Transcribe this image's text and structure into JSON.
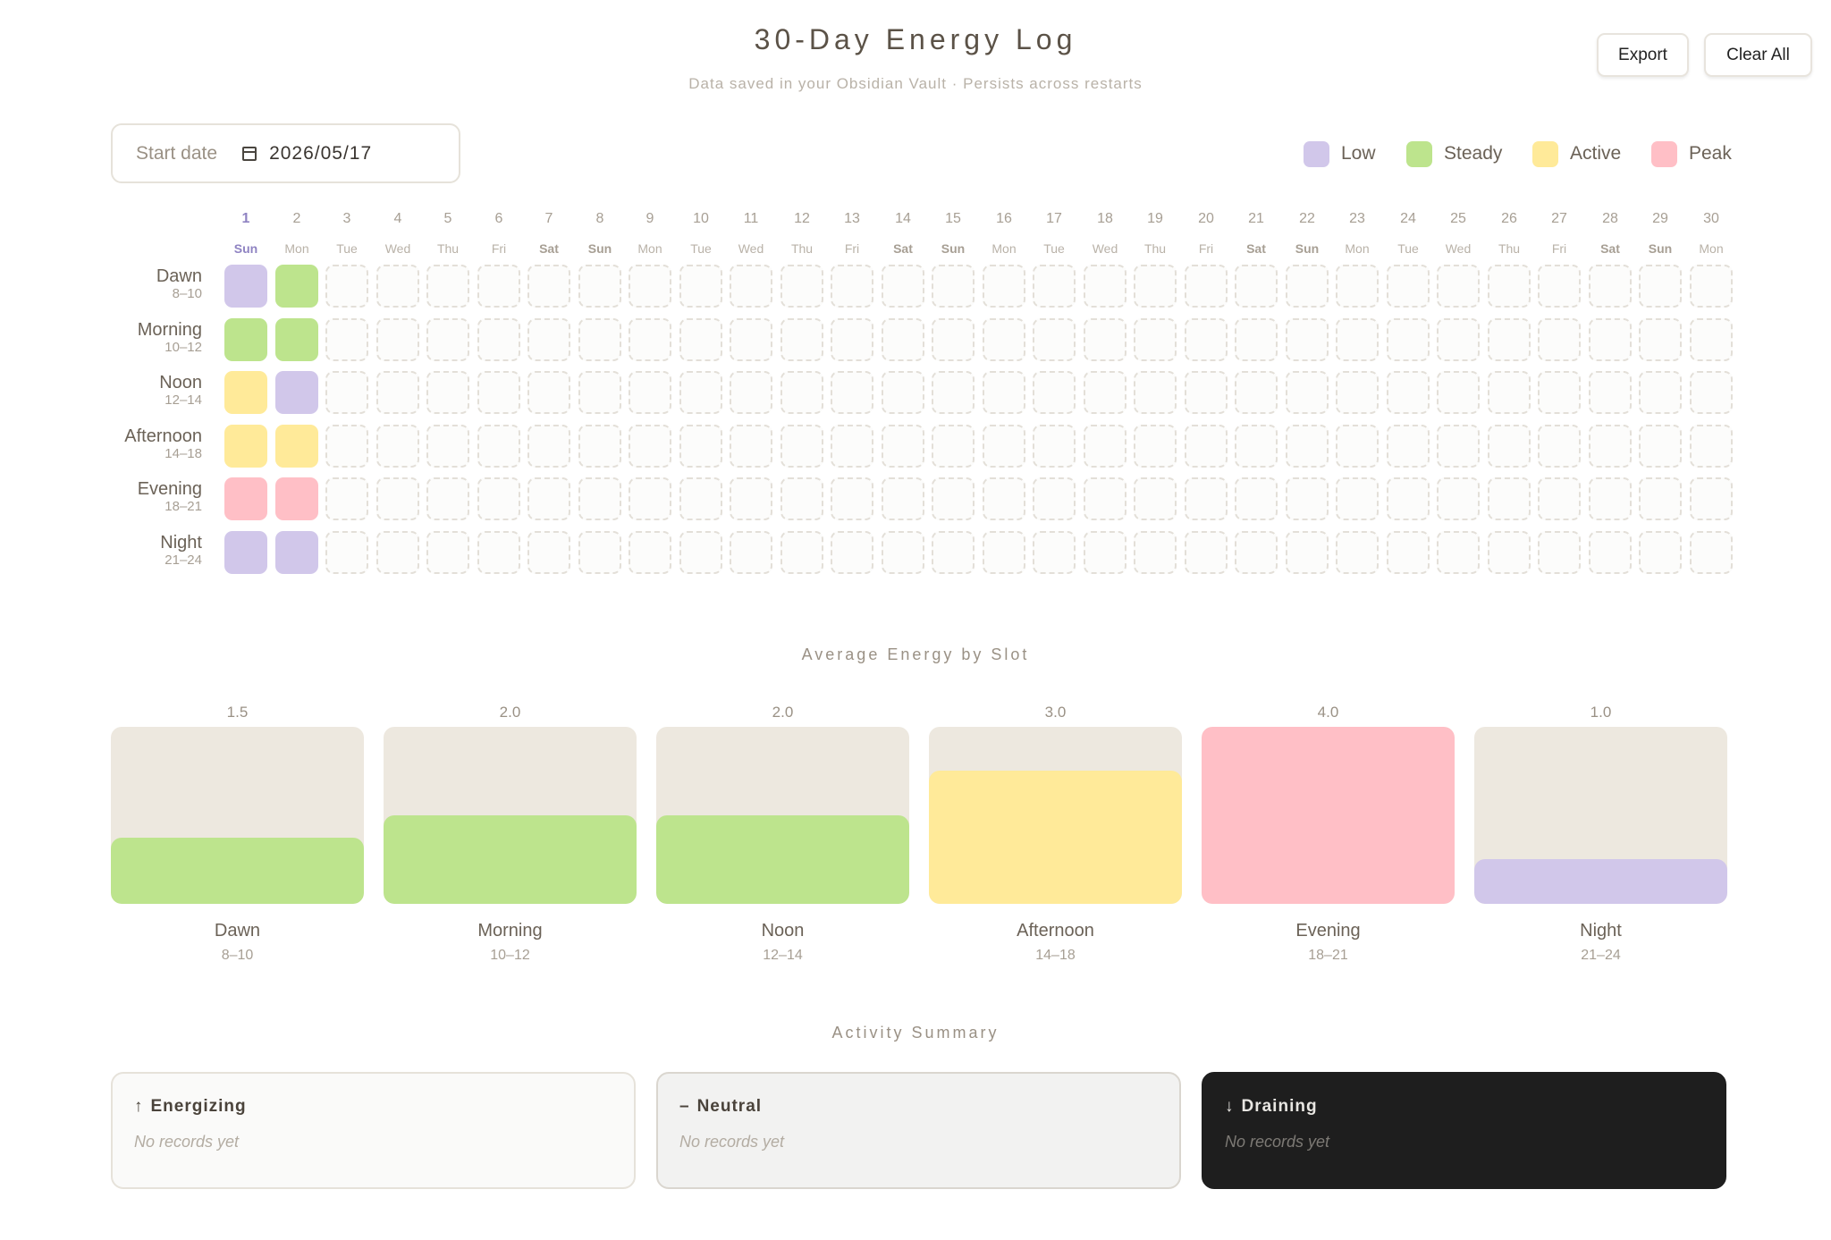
{
  "header": {
    "title": "30-Day Energy Log",
    "subtitle": "Data saved in your Obsidian Vault · Persists across restarts",
    "export_label": "Export",
    "clear_label": "Clear All"
  },
  "start_date": {
    "label": "Start date",
    "value": "2026/05/17",
    "icon": "calendar-icon"
  },
  "legend": [
    {
      "label": "Low",
      "color": "#d1c7ea"
    },
    {
      "label": "Steady",
      "color": "#bde48d"
    },
    {
      "label": "Active",
      "color": "#ffea99"
    },
    {
      "label": "Peak",
      "color": "#ffbfc6"
    }
  ],
  "days": [
    {
      "num": "1",
      "wd": "Sun"
    },
    {
      "num": "2",
      "wd": "Mon"
    },
    {
      "num": "3",
      "wd": "Tue"
    },
    {
      "num": "4",
      "wd": "Wed"
    },
    {
      "num": "5",
      "wd": "Thu"
    },
    {
      "num": "6",
      "wd": "Fri"
    },
    {
      "num": "7",
      "wd": "Sat"
    },
    {
      "num": "8",
      "wd": "Sun"
    },
    {
      "num": "9",
      "wd": "Mon"
    },
    {
      "num": "10",
      "wd": "Tue"
    },
    {
      "num": "11",
      "wd": "Wed"
    },
    {
      "num": "12",
      "wd": "Thu"
    },
    {
      "num": "13",
      "wd": "Fri"
    },
    {
      "num": "14",
      "wd": "Sat"
    },
    {
      "num": "15",
      "wd": "Sun"
    },
    {
      "num": "16",
      "wd": "Mon"
    },
    {
      "num": "17",
      "wd": "Tue"
    },
    {
      "num": "18",
      "wd": "Wed"
    },
    {
      "num": "19",
      "wd": "Thu"
    },
    {
      "num": "20",
      "wd": "Fri"
    },
    {
      "num": "21",
      "wd": "Sat"
    },
    {
      "num": "22",
      "wd": "Sun"
    },
    {
      "num": "23",
      "wd": "Mon"
    },
    {
      "num": "24",
      "wd": "Tue"
    },
    {
      "num": "25",
      "wd": "Wed"
    },
    {
      "num": "26",
      "wd": "Thu"
    },
    {
      "num": "27",
      "wd": "Fri"
    },
    {
      "num": "28",
      "wd": "Sat"
    },
    {
      "num": "29",
      "wd": "Sun"
    },
    {
      "num": "30",
      "wd": "Mon"
    }
  ],
  "slots": [
    {
      "name": "Dawn",
      "hours": "8–10",
      "entries": [
        "Low",
        "Steady"
      ]
    },
    {
      "name": "Morning",
      "hours": "10–12",
      "entries": [
        "Steady",
        "Steady"
      ]
    },
    {
      "name": "Noon",
      "hours": "12–14",
      "entries": [
        "Active",
        "Low"
      ]
    },
    {
      "name": "Afternoon",
      "hours": "14–18",
      "entries": [
        "Active",
        "Active"
      ]
    },
    {
      "name": "Evening",
      "hours": "18–21",
      "entries": [
        "Peak",
        "Peak"
      ]
    },
    {
      "name": "Night",
      "hours": "21–24",
      "entries": [
        "Low",
        "Low"
      ]
    }
  ],
  "averages": {
    "title": "Average Energy by Slot",
    "max": 4,
    "items": [
      {
        "name": "Dawn",
        "hours": "8–10",
        "value": 1.5,
        "label": "1.5",
        "level": "Steady"
      },
      {
        "name": "Morning",
        "hours": "10–12",
        "value": 2.0,
        "label": "2.0",
        "level": "Steady"
      },
      {
        "name": "Noon",
        "hours": "12–14",
        "value": 2.0,
        "label": "2.0",
        "level": "Steady"
      },
      {
        "name": "Afternoon",
        "hours": "14–18",
        "value": 3.0,
        "label": "3.0",
        "level": "Active"
      },
      {
        "name": "Evening",
        "hours": "18–21",
        "value": 4.0,
        "label": "4.0",
        "level": "Peak"
      },
      {
        "name": "Night",
        "hours": "21–24",
        "value": 1.0,
        "label": "1.0",
        "level": "Low"
      }
    ]
  },
  "summary": {
    "title": "Activity Summary",
    "cards": [
      {
        "icon": "↑",
        "icon_name": "arrow-up-icon",
        "title": "Energizing",
        "empty": "No records yet"
      },
      {
        "icon": "–",
        "icon_name": "dash-icon",
        "title": "Neutral",
        "empty": "No records yet"
      },
      {
        "icon": "↓",
        "icon_name": "arrow-down-icon",
        "title": "Draining",
        "empty": "No records yet"
      }
    ]
  }
}
